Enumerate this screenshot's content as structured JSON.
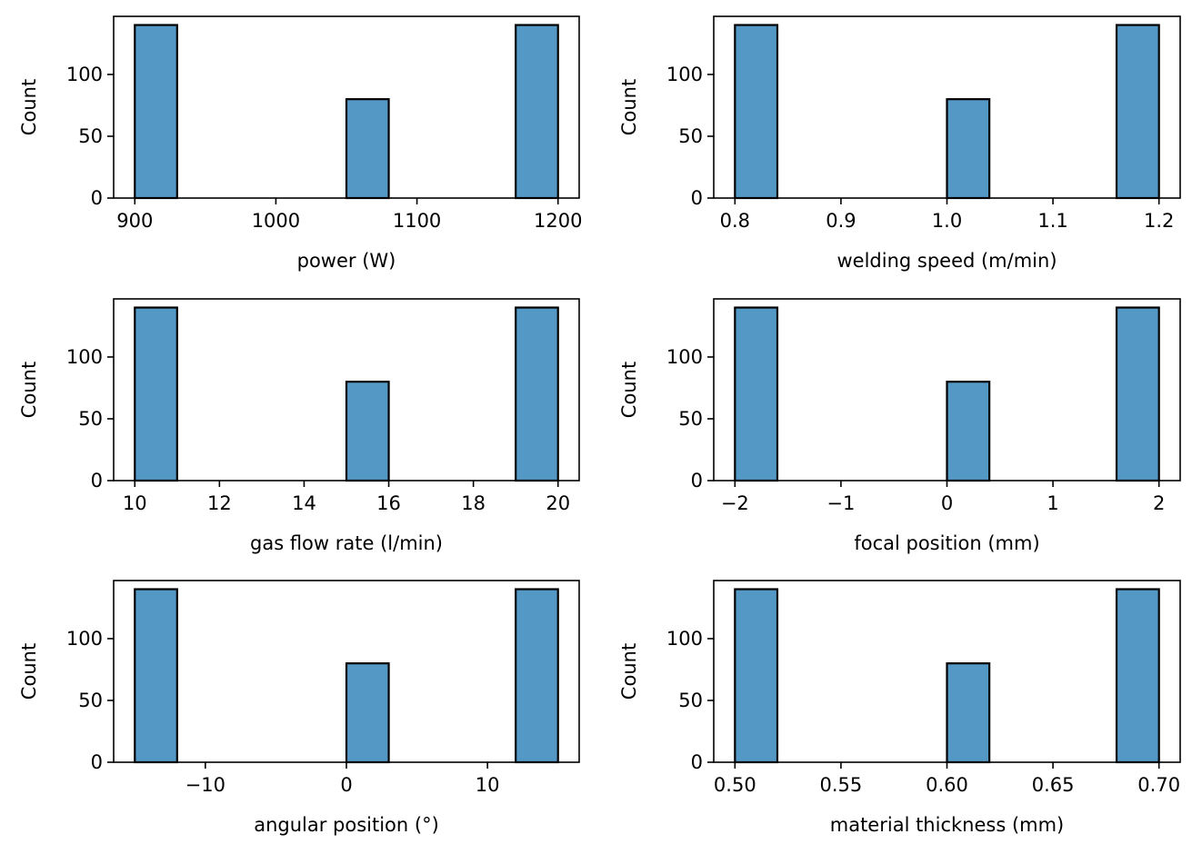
{
  "colors": {
    "bar_fill": "#5498c6",
    "edge": "#000000",
    "background": "#ffffff"
  },
  "chart_data": [
    {
      "type": "bar",
      "xlabel": "power (W)",
      "ylabel": "Count",
      "xlim": [
        885,
        1215
      ],
      "ylim": [
        0,
        147
      ],
      "xticks": [
        900,
        1000,
        1100,
        1200
      ],
      "xtick_labels": [
        "900",
        "1000",
        "1100",
        "1200"
      ],
      "yticks": [
        0,
        50,
        100
      ],
      "ytick_labels": [
        "0",
        "50",
        "100"
      ],
      "bins": [
        {
          "start": 900,
          "end": 930,
          "count": 140
        },
        {
          "start": 1050,
          "end": 1080,
          "count": 80
        },
        {
          "start": 1170,
          "end": 1200,
          "count": 140
        }
      ],
      "grid": false
    },
    {
      "type": "bar",
      "xlabel": "welding speed (m/min)",
      "ylabel": "Count",
      "xlim": [
        0.78,
        1.22
      ],
      "ylim": [
        0,
        147
      ],
      "xticks": [
        0.8,
        0.9,
        1.0,
        1.1,
        1.2
      ],
      "xtick_labels": [
        "0.8",
        "0.9",
        "1.0",
        "1.1",
        "1.2"
      ],
      "yticks": [
        0,
        50,
        100
      ],
      "ytick_labels": [
        "0",
        "50",
        "100"
      ],
      "bins": [
        {
          "start": 0.8,
          "end": 0.84,
          "count": 140
        },
        {
          "start": 1.0,
          "end": 1.04,
          "count": 80
        },
        {
          "start": 1.16,
          "end": 1.2,
          "count": 140
        }
      ],
      "grid": false
    },
    {
      "type": "bar",
      "xlabel": "gas flow rate (l/min)",
      "ylabel": "Count",
      "xlim": [
        9.5,
        20.5
      ],
      "ylim": [
        0,
        147
      ],
      "xticks": [
        10,
        12,
        14,
        16,
        18,
        20
      ],
      "xtick_labels": [
        "10",
        "12",
        "14",
        "16",
        "18",
        "20"
      ],
      "yticks": [
        0,
        50,
        100
      ],
      "ytick_labels": [
        "0",
        "50",
        "100"
      ],
      "bins": [
        {
          "start": 10,
          "end": 11,
          "count": 140
        },
        {
          "start": 15,
          "end": 16,
          "count": 80
        },
        {
          "start": 19,
          "end": 20,
          "count": 140
        }
      ],
      "grid": false
    },
    {
      "type": "bar",
      "xlabel": "focal position (mm)",
      "ylabel": "Count",
      "xlim": [
        -2.2,
        2.2
      ],
      "ylim": [
        0,
        147
      ],
      "xticks": [
        -2,
        -1,
        0,
        1,
        2
      ],
      "xtick_labels": [
        "−2",
        "−1",
        "0",
        "1",
        "2"
      ],
      "yticks": [
        0,
        50,
        100
      ],
      "ytick_labels": [
        "0",
        "50",
        "100"
      ],
      "bins": [
        {
          "start": -2.0,
          "end": -1.6,
          "count": 140
        },
        {
          "start": 0.0,
          "end": 0.4,
          "count": 80
        },
        {
          "start": 1.6,
          "end": 2.0,
          "count": 140
        }
      ],
      "grid": false
    },
    {
      "type": "bar",
      "xlabel": "angular position (°)",
      "ylabel": "Count",
      "xlim": [
        -16.5,
        16.5
      ],
      "ylim": [
        0,
        147
      ],
      "xticks": [
        -10,
        0,
        10
      ],
      "xtick_labels": [
        "−10",
        "0",
        "10"
      ],
      "yticks": [
        0,
        50,
        100
      ],
      "ytick_labels": [
        "0",
        "50",
        "100"
      ],
      "bins": [
        {
          "start": -15,
          "end": -12,
          "count": 140
        },
        {
          "start": 0,
          "end": 3,
          "count": 80
        },
        {
          "start": 12,
          "end": 15,
          "count": 140
        }
      ],
      "grid": false
    },
    {
      "type": "bar",
      "xlabel": "material thickness (mm)",
      "ylabel": "Count",
      "xlim": [
        0.49,
        0.71
      ],
      "ylim": [
        0,
        147
      ],
      "xticks": [
        0.5,
        0.55,
        0.6,
        0.65,
        0.7
      ],
      "xtick_labels": [
        "0.50",
        "0.55",
        "0.60",
        "0.65",
        "0.70"
      ],
      "yticks": [
        0,
        50,
        100
      ],
      "ytick_labels": [
        "0",
        "50",
        "100"
      ],
      "bins": [
        {
          "start": 0.5,
          "end": 0.52,
          "count": 140
        },
        {
          "start": 0.6,
          "end": 0.62,
          "count": 80
        },
        {
          "start": 0.68,
          "end": 0.7,
          "count": 140
        }
      ],
      "grid": false
    }
  ]
}
